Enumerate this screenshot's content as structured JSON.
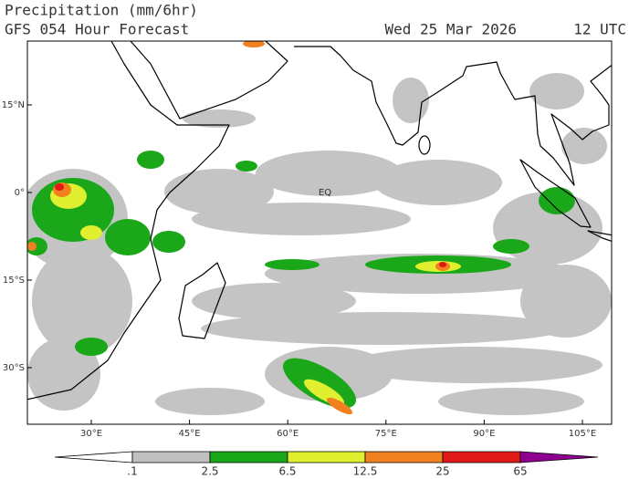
{
  "header": {
    "title": "Precipitation (mm/6hr)",
    "subtitle": "GFS 054 Hour Forecast",
    "date": "Wed 25 Mar 2026",
    "time": "12 UTC"
  },
  "map": {
    "annotation": "EQ",
    "lat_labels": [
      "15°N",
      "0°",
      "15°S",
      "30°S"
    ],
    "lon_labels": [
      "30°E",
      "45°E",
      "60°E",
      "75°E",
      "90°E",
      "105°E"
    ]
  },
  "colorbar": {
    "labels": [
      ".1",
      "2.5",
      "6.5",
      "12.5",
      "25",
      "65"
    ],
    "colors": [
      "#ffffff",
      "#c0c0c0",
      "#1aa81a",
      "#e0f030",
      "#f08020",
      "#e01818",
      "#900090"
    ]
  }
}
